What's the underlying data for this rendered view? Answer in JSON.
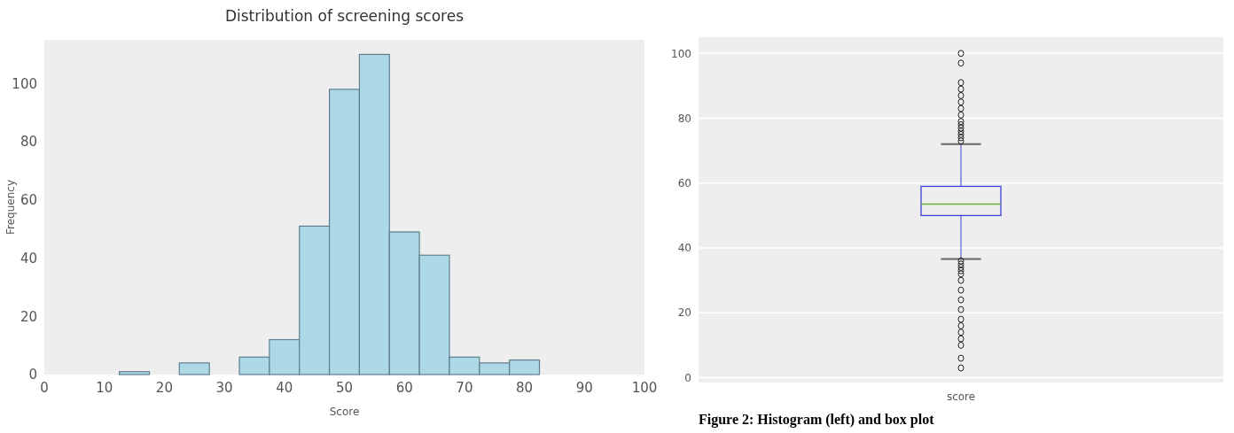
{
  "chart_data": [
    {
      "type": "histogram",
      "title": "Distribution of screening scores",
      "xlabel": "Score",
      "ylabel": "Frequency",
      "bins": [
        12.5,
        17.5,
        22.5,
        27.5,
        32.5,
        37.5,
        42.5,
        47.5,
        52.5,
        57.5,
        62.5,
        67.5,
        72.5,
        77.5,
        82.5
      ],
      "values": [
        1,
        0,
        4,
        0,
        6,
        12,
        51,
        98,
        110,
        49,
        41,
        6,
        4,
        5
      ],
      "color": "#add8e6",
      "xlim": [
        0,
        100
      ],
      "xticks": [
        0,
        10,
        20,
        30,
        40,
        50,
        60,
        70,
        80,
        90,
        100
      ],
      "ylim": [
        0,
        115
      ],
      "yticks": [
        0,
        20,
        40,
        60,
        80,
        100
      ]
    },
    {
      "type": "box",
      "categories": [
        "score"
      ],
      "boxes": [
        {
          "low": 36.6,
          "q1": 50,
          "median": 53.5,
          "q3": 59,
          "high": 72,
          "outliers": [
            100,
            97,
            91,
            89,
            87,
            85,
            83,
            81,
            79,
            78,
            77,
            76,
            75,
            74,
            73,
            36,
            35,
            34,
            33,
            32,
            30,
            27,
            24,
            21,
            18,
            16,
            14,
            12,
            10,
            6,
            3
          ]
        }
      ],
      "color": "#3f3fd8",
      "ylim": [
        -1.5,
        105
      ],
      "yticks": [
        0,
        20,
        40,
        60,
        80,
        100
      ],
      "grid": "y",
      "annotations": [
        "Figure 2: Histogram (left) and box plot"
      ]
    }
  ]
}
